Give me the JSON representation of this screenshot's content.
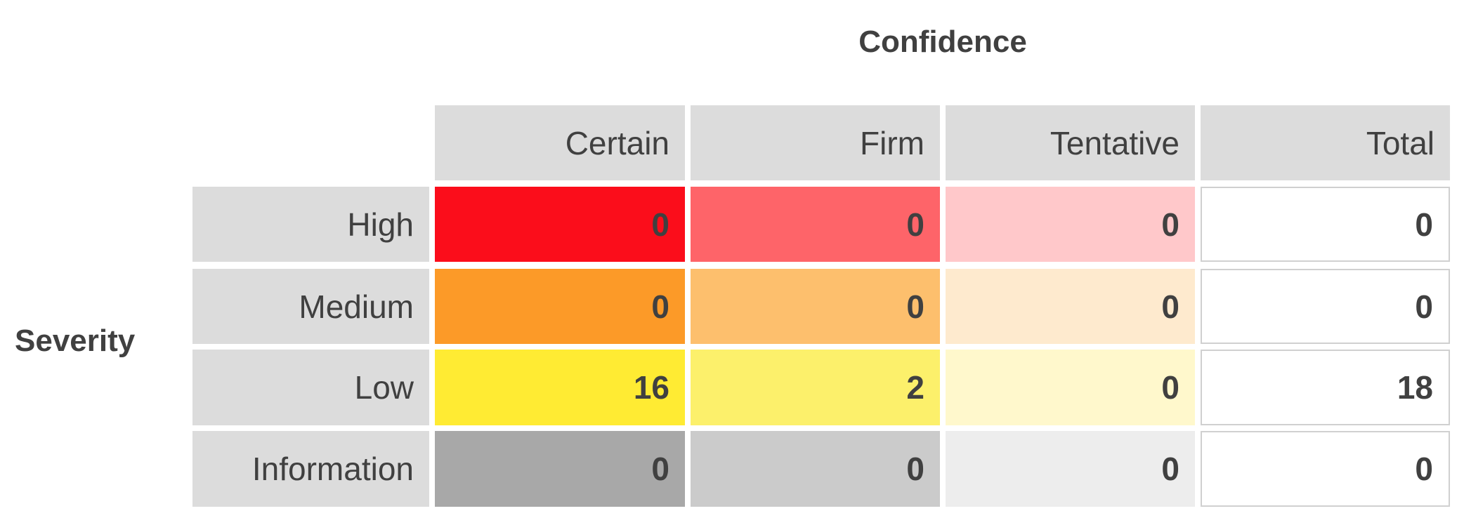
{
  "title": "Confidence",
  "row_title": "Severity",
  "columns": [
    "Certain",
    "Firm",
    "Tentative",
    "Total"
  ],
  "rows": [
    {
      "label": "High",
      "values": [
        0,
        0,
        0,
        0
      ]
    },
    {
      "label": "Medium",
      "values": [
        0,
        0,
        0,
        0
      ]
    },
    {
      "label": "Low",
      "values": [
        16,
        2,
        0,
        18
      ]
    },
    {
      "label": "Information",
      "values": [
        0,
        0,
        0,
        0
      ]
    }
  ]
}
